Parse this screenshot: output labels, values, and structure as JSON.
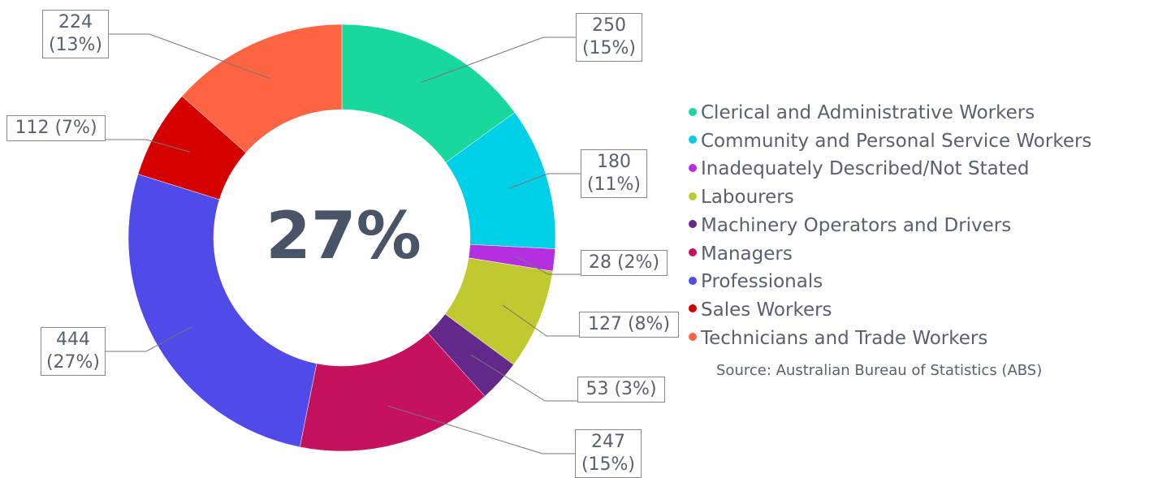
{
  "chart_data": {
    "type": "donut",
    "center_label": "27%",
    "categories": [
      "Clerical and Administrative Workers",
      "Community and Personal Service Workers",
      "Inadequately Described/Not Stated",
      "Labourers",
      "Machinery Operators and Drivers",
      "Managers",
      "Professionals",
      "Sales Workers",
      "Technicians and Trade Workers"
    ],
    "values": [
      250,
      180,
      28,
      127,
      53,
      247,
      444,
      112,
      224
    ],
    "value_labels": [
      "250 (15%)",
      "180 (11%)",
      "28 (2%)",
      "127 (8%)",
      "53 (3%)",
      "247 (15%)",
      "444 (27%)",
      "112 (7%)",
      "224 (13%)"
    ],
    "colors": [
      "#19d89b",
      "#00cfe8",
      "#b42fe0",
      "#c0c930",
      "#62288a",
      "#c4125e",
      "#4f4ae8",
      "#d40000",
      "#fd6442"
    ],
    "legend": "right",
    "source": "Source: Australian Bureau of Statistics (ABS)"
  }
}
